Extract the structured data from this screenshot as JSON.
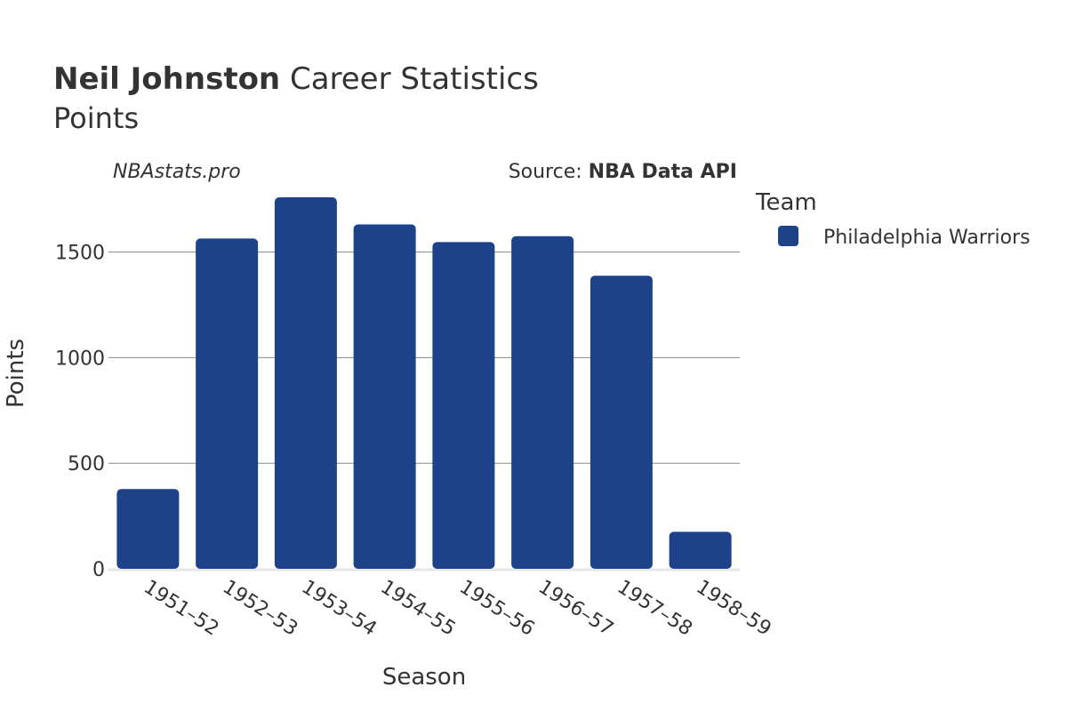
{
  "title": {
    "bold": "Neil Johnston",
    "rest": " Career Statistics",
    "subtitle": "Points"
  },
  "watermark": "NBAstats.pro",
  "source": {
    "prefix": "Source: ",
    "name": "NBA Data API"
  },
  "legend": {
    "title": "Team"
  },
  "colors": {
    "bar": "#1d4289",
    "grid": "#8a8a8a",
    "baseline": "#e6e6e6",
    "text": "#333333"
  },
  "chart_data": {
    "type": "bar",
    "categories": [
      "1951–52",
      "1952–53",
      "1953–54",
      "1954–55",
      "1955–56",
      "1956–57",
      "1957–58",
      "1958–59"
    ],
    "series": [
      {
        "name": "Philadelphia Warriors",
        "values": [
          378,
          1564,
          1759,
          1631,
          1547,
          1575,
          1388,
          175
        ]
      }
    ],
    "xlabel": "Season",
    "ylabel": "Points",
    "yticks": [
      0,
      500,
      1000,
      1500
    ],
    "ylim": [
      0,
      1850
    ],
    "grid": true,
    "legend_position": "right"
  }
}
